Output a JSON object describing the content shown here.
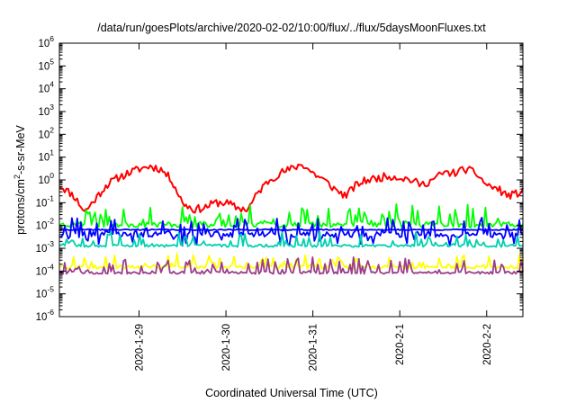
{
  "chart_data": {
    "type": "line",
    "title": "/data/run/goesPlots/archive/2020-02-02/10:00/flux/../flux/5daysMoonFluxes.txt",
    "xlabel": "Coordinated Universal Time (UTC)",
    "ylabel": {
      "prefix": "protons/cm",
      "sup": "2",
      "suffix": "-s-sr-MeV"
    },
    "yscale": "log",
    "ylim": [
      1e-06,
      1000000.0
    ],
    "xlim": [
      "2020-01-28 02:00",
      "2020-02-02 10:00"
    ],
    "grid": false,
    "legend": "none",
    "yticks": [
      {
        "value": 1e-06,
        "base": "10",
        "exp": "-6"
      },
      {
        "value": 1e-05,
        "base": "10",
        "exp": "-5"
      },
      {
        "value": 0.0001,
        "base": "10",
        "exp": "-4"
      },
      {
        "value": 0.001,
        "base": "10",
        "exp": "-3"
      },
      {
        "value": 0.01,
        "base": "10",
        "exp": "-2"
      },
      {
        "value": 0.1,
        "base": "10",
        "exp": "-1"
      },
      {
        "value": 1.0,
        "base": "10",
        "exp": "0"
      },
      {
        "value": 10.0,
        "base": "10",
        "exp": "1"
      },
      {
        "value": 100.0,
        "base": "10",
        "exp": "2"
      },
      {
        "value": 1000.0,
        "base": "10",
        "exp": "3"
      },
      {
        "value": 10000.0,
        "base": "10",
        "exp": "4"
      },
      {
        "value": 100000.0,
        "base": "10",
        "exp": "5"
      },
      {
        "value": 1000000.0,
        "base": "10",
        "exp": "6"
      }
    ],
    "xticks": [
      {
        "value": "2020-01-29 00:00",
        "label": "2020-1-29"
      },
      {
        "value": "2020-01-30 00:00",
        "label": "2020-1-30"
      },
      {
        "value": "2020-01-31 00:00",
        "label": "2020-1-31"
      },
      {
        "value": "2020-02-01 00:00",
        "label": "2020-2-1"
      },
      {
        "value": "2020-02-02 00:00",
        "label": "2020-2-2"
      }
    ],
    "series": [
      {
        "color": "#ff0000",
        "style": "smooth",
        "x": [
          "2020-01-28 02:00",
          "2020-01-28 06:00",
          "2020-01-28 09:00",
          "2020-01-28 12:00",
          "2020-01-28 15:00",
          "2020-01-28 18:00",
          "2020-01-28 21:00",
          "2020-01-29 00:00",
          "2020-01-29 03:00",
          "2020-01-29 06:00",
          "2020-01-29 09:00",
          "2020-01-29 12:00",
          "2020-01-29 15:00",
          "2020-01-29 18:00",
          "2020-01-29 21:00",
          "2020-01-30 00:00",
          "2020-01-30 03:00",
          "2020-01-30 06:00",
          "2020-01-30 09:00",
          "2020-01-30 12:00",
          "2020-01-30 15:00",
          "2020-01-30 18:00",
          "2020-01-30 21:00",
          "2020-01-31 00:00",
          "2020-01-31 03:00",
          "2020-01-31 06:00",
          "2020-01-31 09:00",
          "2020-01-31 12:00",
          "2020-01-31 15:00",
          "2020-01-31 18:00",
          "2020-01-31 21:00",
          "2020-02-01 00:00",
          "2020-02-01 03:00",
          "2020-02-01 06:00",
          "2020-02-01 09:00",
          "2020-02-01 12:00",
          "2020-02-01 15:00",
          "2020-02-01 18:00",
          "2020-02-01 21:00",
          "2020-02-02 00:00",
          "2020-02-02 03:00",
          "2020-02-02 06:00",
          "2020-02-02 10:00"
        ],
        "y": [
          0.6,
          0.2,
          0.04,
          0.15,
          0.6,
          1.2,
          2,
          3,
          4,
          3,
          1,
          0.1,
          0.05,
          0.06,
          0.1,
          0.1,
          0.06,
          0.05,
          0.3,
          1,
          2,
          3,
          5,
          2,
          1,
          0.4,
          0.2,
          0.6,
          1,
          1.2,
          1.5,
          1.3,
          1,
          0.6,
          1,
          2,
          2,
          3,
          2,
          0.6,
          0.4,
          0.2,
          0.3
        ],
        "noise": 0.35,
        "seed": 11
      },
      {
        "color": "#00ff00",
        "style": "spiky",
        "x": [
          "2020-01-28 02:00",
          "2020-02-02 10:00"
        ],
        "y": [
          0.011,
          0.011
        ],
        "noise": 0.25,
        "spike_prob": 0.3,
        "spike_max": 0.8,
        "seed": 23
      },
      {
        "color": "#0000ff",
        "style": "spiky",
        "x": [
          "2020-01-28 02:00",
          "2020-02-02 10:00"
        ],
        "y": [
          0.004,
          0.004
        ],
        "noise": 0.25,
        "spike_prob": 0.25,
        "spike_max": 0.7,
        "dip_prob": 0.2,
        "seed": 37
      },
      {
        "color": "#0000ff",
        "style": "flat",
        "x": [
          "2020-01-28 02:00",
          "2020-02-02 10:00"
        ],
        "y": [
          0.0065,
          0.0065
        ],
        "noise": 0.05,
        "seed": 41
      },
      {
        "color": "#00d0b0",
        "style": "spiky",
        "x": [
          "2020-01-28 02:00",
          "2020-02-02 10:00"
        ],
        "y": [
          0.0013,
          0.0013
        ],
        "noise": 0.12,
        "spike_prob": 0.22,
        "spike_max": 0.6,
        "seed": 53
      },
      {
        "color": "#ffff00",
        "style": "spiky",
        "x": [
          "2020-01-28 02:00",
          "2020-02-02 10:00"
        ],
        "y": [
          0.00015,
          0.00015
        ],
        "noise": 0.15,
        "spike_prob": 0.3,
        "spike_max": 0.55,
        "seed": 67
      },
      {
        "color": "#9b3d8a",
        "style": "spiky",
        "x": [
          "2020-01-28 02:00",
          "2020-02-02 10:00"
        ],
        "y": [
          8.5e-05,
          8.5e-05
        ],
        "noise": 0.12,
        "spike_prob": 0.32,
        "spike_max": 0.65,
        "seed": 79
      }
    ]
  }
}
